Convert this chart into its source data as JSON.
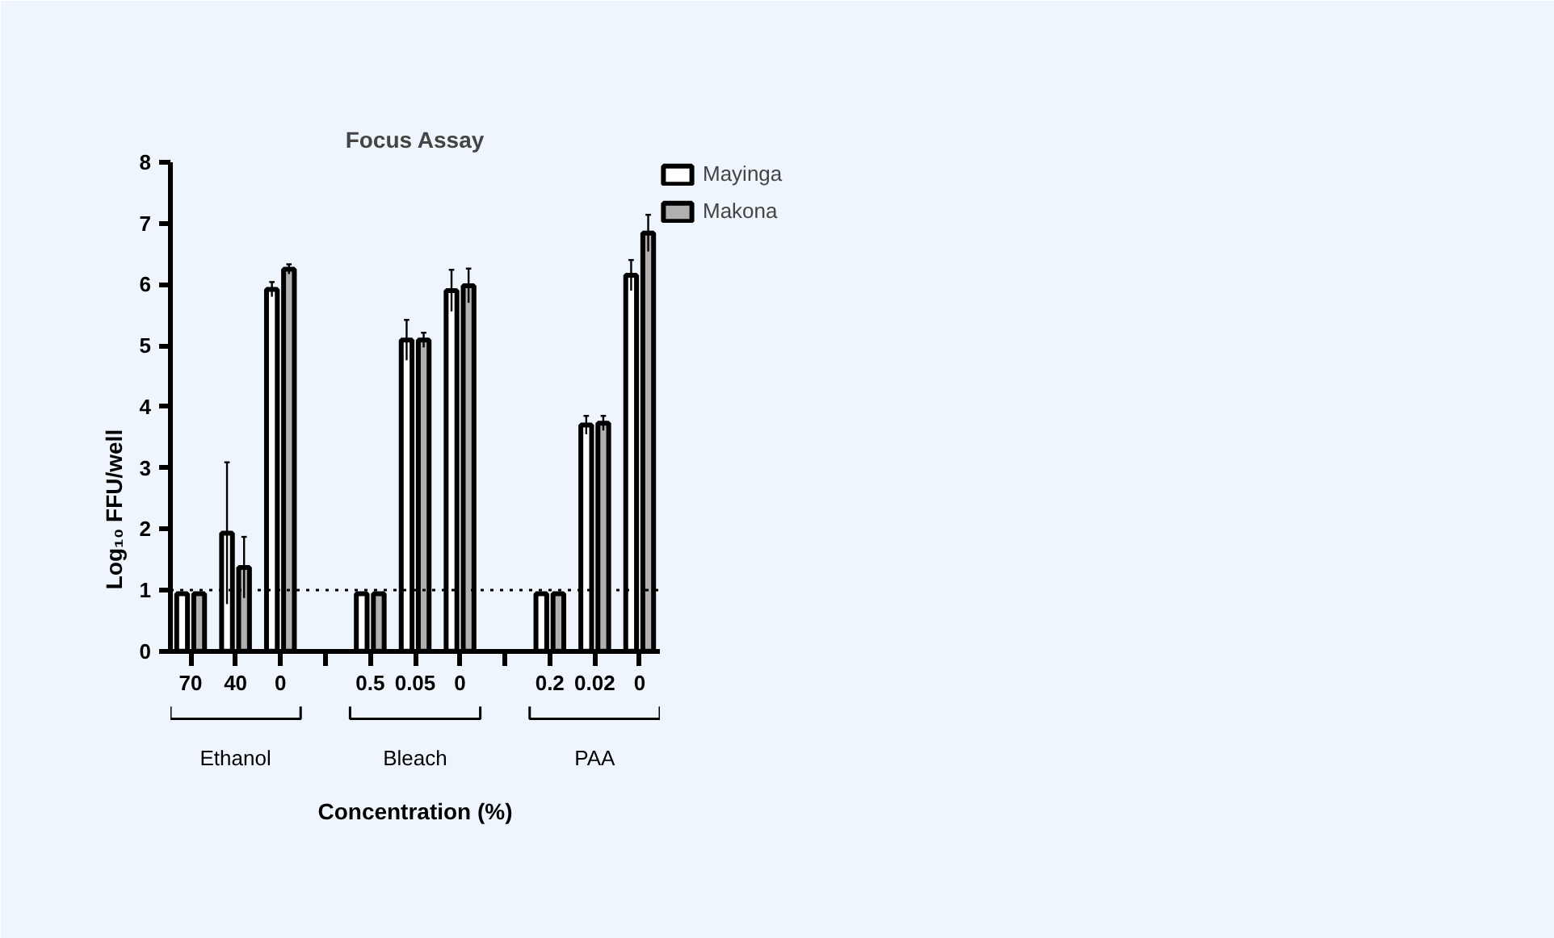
{
  "chart_data": {
    "type": "bar",
    "title": "Focus Assay",
    "xlabel": "Concentration (%)",
    "ylabel": "Log₁₀ FFU/well",
    "categories": [
      "70",
      "40",
      "0",
      null,
      "0.5",
      "0.05",
      "0",
      null,
      "0.2",
      "0.02",
      "0"
    ],
    "series": [
      {
        "name": "Mayinga",
        "color": "#ffffff",
        "values": [
          0.94,
          1.93,
          5.92,
          null,
          0.94,
          5.09,
          5.9,
          null,
          0.94,
          3.7,
          6.15
        ],
        "errors": [
          null,
          1.16,
          0.12,
          null,
          null,
          0.33,
          0.34,
          null,
          null,
          0.15,
          0.25
        ]
      },
      {
        "name": "Makona",
        "color": "#b0b0b0",
        "values": [
          0.94,
          1.37,
          6.25,
          null,
          0.94,
          5.09,
          5.98,
          null,
          0.94,
          3.73,
          6.84
        ],
        "errors": [
          null,
          0.5,
          0.08,
          null,
          null,
          0.12,
          0.28,
          null,
          null,
          0.12,
          0.3
        ]
      }
    ],
    "ylim": [
      0,
      8
    ],
    "yticks": [
      0,
      1,
      2,
      3,
      4,
      5,
      6,
      7,
      8
    ],
    "ref_lines": [
      {
        "axis": "y",
        "value": 1,
        "line_style": "dotted",
        "color": "#000000"
      }
    ],
    "legend": "top right",
    "annotations": [
      "Ethanol",
      "Bleach",
      "PAA"
    ]
  }
}
